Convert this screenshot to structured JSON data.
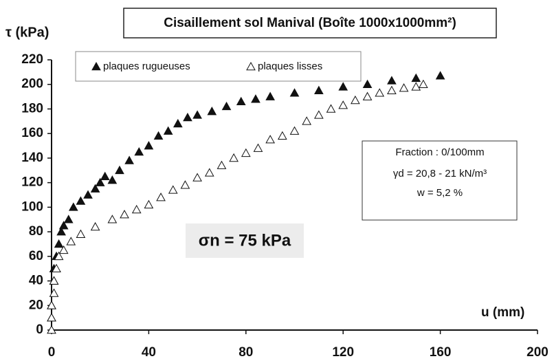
{
  "chart_data": {
    "type": "scatter",
    "title": "Cisaillement sol Manival  (Boîte 1000x1000mm²)",
    "y_label": "τ  (kPa)",
    "x_label": "u (mm)",
    "annotations": [
      "Fraction : 0/100mm",
      "γd = 20,8 - 21  kN/m³",
      "w = 5,2 %"
    ],
    "sigma_label": "σn = 75 kPa",
    "xlim": [
      0,
      200
    ],
    "xticks": [
      0,
      40,
      80,
      120,
      160,
      200
    ],
    "ylim": [
      0,
      220
    ],
    "yticks": [
      0,
      20,
      40,
      60,
      80,
      100,
      120,
      140,
      160,
      180,
      200,
      220
    ],
    "series": [
      {
        "name": "plaques rugueuses",
        "color": "#111111",
        "filled": true,
        "x": [
          0,
          0,
          1,
          1,
          2,
          3,
          4,
          5,
          7,
          9,
          12,
          15,
          18,
          20,
          22,
          25,
          28,
          32,
          36,
          40,
          44,
          48,
          52,
          56,
          60,
          66,
          72,
          78,
          84,
          90,
          100,
          110,
          120,
          130,
          140,
          150,
          160
        ],
        "values": [
          10,
          20,
          40,
          50,
          60,
          70,
          80,
          85,
          90,
          100,
          105,
          110,
          115,
          120,
          125,
          122,
          130,
          138,
          145,
          150,
          158,
          162,
          168,
          173,
          175,
          178,
          182,
          186,
          188,
          190,
          193,
          195,
          198,
          200,
          203,
          205,
          207
        ]
      },
      {
        "name": "plaques lisses",
        "color": "#111111",
        "filled": false,
        "x": [
          0,
          0,
          0,
          1,
          1,
          2,
          3,
          5,
          8,
          12,
          18,
          25,
          30,
          35,
          40,
          45,
          50,
          55,
          60,
          65,
          70,
          75,
          80,
          85,
          90,
          95,
          100,
          105,
          110,
          115,
          120,
          125,
          130,
          135,
          140,
          145,
          150,
          153
        ],
        "values": [
          0,
          10,
          20,
          30,
          40,
          50,
          60,
          65,
          72,
          78,
          84,
          90,
          94,
          98,
          102,
          108,
          114,
          118,
          124,
          128,
          134,
          140,
          144,
          148,
          155,
          158,
          162,
          170,
          175,
          180,
          183,
          187,
          190,
          193,
          195,
          197,
          198,
          200
        ]
      }
    ]
  }
}
